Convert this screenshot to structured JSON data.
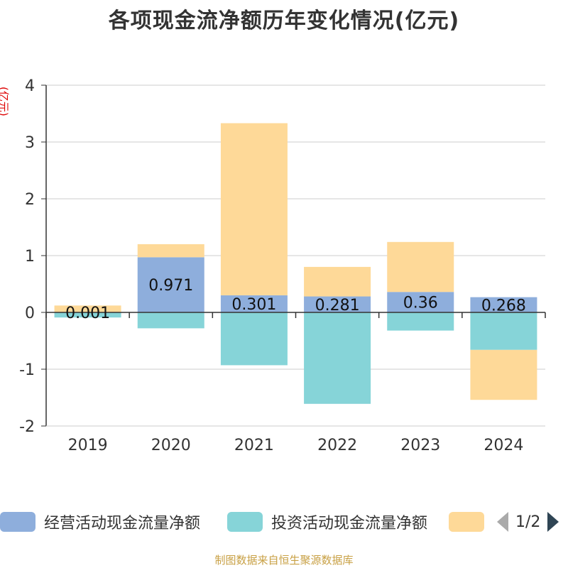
{
  "title": "各项现金流净额历年变化情况(亿元)",
  "y_unit": "(亿元)",
  "source": "制图数据来自恒生聚源数据库",
  "pager": {
    "text": "1/2",
    "prev_icon": "triangle-left-icon",
    "next_icon": "triangle-right-icon"
  },
  "colors": {
    "operating": "#8eaedc",
    "investing": "#86d4d8",
    "financing": "#fed998",
    "axis": "#333333",
    "grid": "#cccccc"
  },
  "chart_data": {
    "type": "bar",
    "stacked": true,
    "categories": [
      "2019",
      "2020",
      "2021",
      "2022",
      "2023",
      "2024"
    ],
    "ylim": [
      -2,
      4
    ],
    "yticks": [
      -2,
      -1,
      0,
      1,
      2,
      3,
      4
    ],
    "grid": true,
    "legend_position": "bottom",
    "series": [
      {
        "name": "经营活动现金流量净额",
        "values": [
          0.001,
          0.971,
          0.301,
          0.281,
          0.36,
          0.268
        ],
        "labels": [
          "0.001",
          "0.971",
          "0.301",
          "0.281",
          "0.36",
          "0.268"
        ]
      },
      {
        "name": "投资活动现金流量净额",
        "values": [
          -0.09,
          -0.28,
          -0.93,
          -1.61,
          -0.32,
          -0.66
        ]
      },
      {
        "name": "",
        "values": [
          0.12,
          0.23,
          3.03,
          0.52,
          0.88,
          -0.88
        ]
      }
    ]
  }
}
